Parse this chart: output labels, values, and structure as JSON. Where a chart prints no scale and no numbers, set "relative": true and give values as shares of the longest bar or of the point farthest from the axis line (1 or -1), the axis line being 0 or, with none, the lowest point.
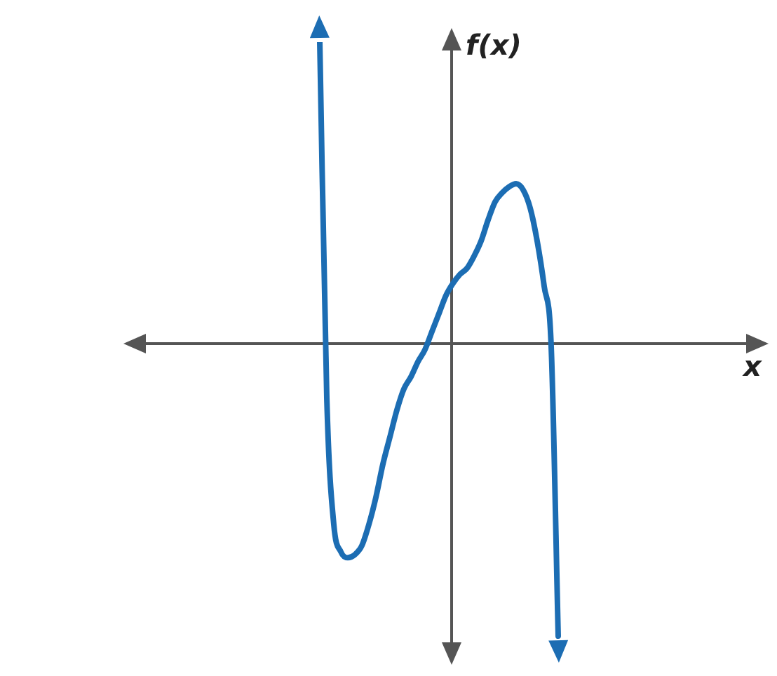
{
  "chart_data": {
    "type": "line",
    "relative": true,
    "ylabel": "f(x)",
    "annotations": [
      "x"
    ],
    "color": "#1c6db3",
    "marker": "none",
    "legend": false,
    "categories": [
      null,
      null,
      null,
      null,
      null,
      null,
      null,
      null,
      null,
      null,
      null,
      null,
      null,
      null,
      null,
      null,
      null,
      null,
      null,
      null,
      null,
      null,
      null,
      null,
      null,
      null,
      null,
      null,
      null,
      null,
      null,
      null,
      null,
      null,
      null
    ],
    "values": [
      1.0,
      -0.18,
      -0.6,
      -0.69,
      -0.71,
      -0.7,
      -0.67,
      -0.6,
      -0.51,
      -0.4,
      -0.31,
      -0.22,
      -0.15,
      -0.11,
      -0.06,
      -0.02,
      0.04,
      0.1,
      0.16,
      0.2,
      0.23,
      0.25,
      0.29,
      0.34,
      0.41,
      0.47,
      0.5,
      0.52,
      0.53,
      0.51,
      0.45,
      0.34,
      0.19,
      -0.01,
      -0.97
    ]
  }
}
